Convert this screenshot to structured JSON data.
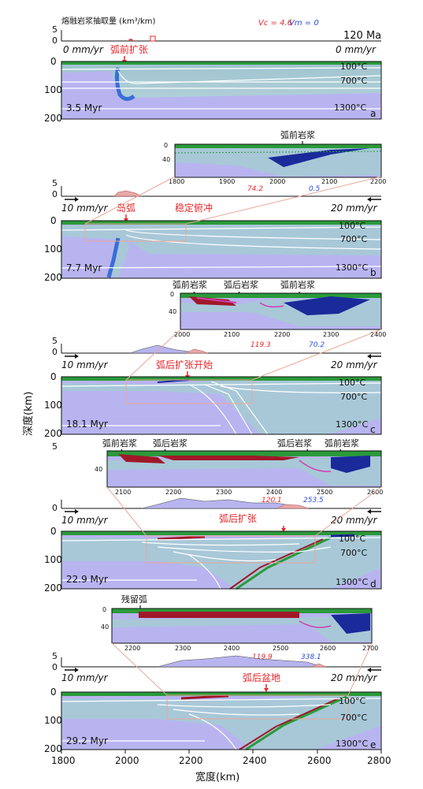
{
  "header": {
    "melt_title": "熔融岩浆抽取量 (km³/km)",
    "vc_label": "Vc = 4.6",
    "vm_label": "Vm = 0",
    "age": "120 Ma"
  },
  "axes": {
    "y_label": "深度(km)",
    "x_label": "宽度(km)",
    "x_ticks": [
      "1800",
      "2000",
      "2200",
      "2400",
      "2600",
      "2800"
    ],
    "depth_ticks": [
      "0",
      "100",
      "200"
    ],
    "melt_ticks": [
      "5",
      "0"
    ],
    "inset_depth_ticks": [
      "0",
      "40"
    ]
  },
  "isotherms": [
    "100°C",
    "700°C",
    "1300°C"
  ],
  "panels": [
    {
      "letter": "a",
      "time": "3.5 Myr",
      "left_rate": "0 mm/yr",
      "right_rate": "0 mm/yr",
      "annotation": "弧前扩张"
    },
    {
      "letter": "b",
      "time": "7.7 Myr",
      "left_rate": "10 mm/yr",
      "right_rate": "20 mm/yr",
      "annotation_left": "岛弧",
      "annotation_right": "稳定俯冲"
    },
    {
      "letter": "c",
      "time": "18.1 Myr",
      "left_rate": "10 mm/yr",
      "right_rate": "20 mm/yr",
      "annotation": "弧后扩张开始"
    },
    {
      "letter": "d",
      "time": "22.9 Myr",
      "left_rate": "10 mm/yr",
      "right_rate": "20 mm/yr",
      "annotation": "弧后扩张"
    },
    {
      "letter": "e",
      "time": "29.2 Myr",
      "left_rate": "10 mm/yr",
      "right_rate": "20 mm/yr",
      "annotation": "弧后盆地"
    }
  ],
  "insets": [
    {
      "ticks": [
        "1800",
        "1900",
        "2000",
        "2100",
        "2200"
      ],
      "labels": [
        "弧前岩浆"
      ],
      "red_value": "74.2",
      "blue_value": "0.5"
    },
    {
      "ticks": [
        "2000",
        "2100",
        "2200",
        "2300",
        "2400"
      ],
      "labels": [
        "弧前岩浆",
        "弧后岩浆",
        "弧前岩浆"
      ],
      "red_value": "119.3",
      "blue_value": "70.2"
    },
    {
      "ticks": [
        "2100",
        "2200",
        "2300",
        "2400",
        "2500",
        "2600"
      ],
      "labels": [
        "弧前岩浆",
        "弧后岩浆",
        "弧后岩浆",
        "弧前岩浆"
      ],
      "red_value": "120.1",
      "blue_value": "253.5"
    },
    {
      "ticks": [
        "2200",
        "2300",
        "2400",
        "2500",
        "2600",
        "2700"
      ],
      "labels": [
        "残留弧"
      ],
      "red_value": "119.9",
      "blue_value": "338.1"
    }
  ],
  "colors": {
    "mantle": "#b8b4f0",
    "lithosphere": "#a8c8d8",
    "crust_green": "#2a9a3a",
    "melt_red": "#a0182a",
    "melt_blue": "#1a2a9a",
    "annotation_red": "#e8262a",
    "annotation_blue": "#2b4fd6",
    "outline": "#e8a898"
  }
}
